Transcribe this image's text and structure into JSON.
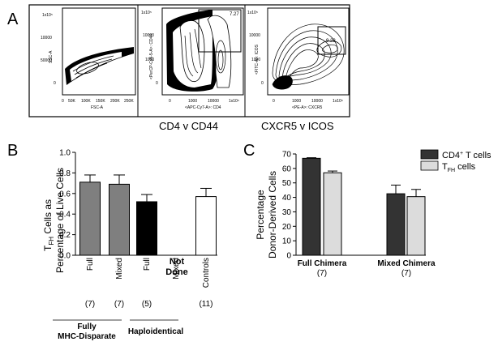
{
  "panel_labels": {
    "a": "A",
    "b": "B",
    "c": "C"
  },
  "flow": {
    "plots": [
      {
        "ylabel": "SSC-A",
        "xlabel": "FSC-A",
        "y_ticks": [
          "1x10⁵",
          "10000",
          "50000",
          "0"
        ],
        "x_ticks": [
          "0",
          "50K",
          "100K",
          "150K",
          "200K",
          "250K"
        ],
        "gate_value": ""
      },
      {
        "ylabel": "<PerCP-Cy5-5-A>: CD44",
        "xlabel": "<APC-Cy7-A>: CD4",
        "y_ticks": [
          "1x10⁵",
          "10000",
          "1000",
          "0"
        ],
        "x_ticks": [
          "0",
          "1000",
          "10000",
          "1x10⁵"
        ],
        "gate_value": "7.27"
      },
      {
        "ylabel": "<FITC-A>: ICOS",
        "xlabel": "<PE-A>: CXCR5",
        "y_ticks": [
          "1x10⁵",
          "10000",
          "1000",
          "0"
        ],
        "x_ticks": [
          "0",
          "1000",
          "10000",
          "1x10⁵"
        ],
        "gate_value": "9.28"
      }
    ],
    "captions": [
      "CD4 v CD44",
      "CXCR5 v ICOS"
    ]
  },
  "chart_data": [
    {
      "type": "bar",
      "ylabel_parts": [
        "T",
        "FH",
        " Cells as"
      ],
      "ylabel_line2": "Percentage of Live Cells",
      "ylim": [
        0,
        1.0
      ],
      "y_ticks": [
        "0.0",
        "0.2",
        "0.4",
        "0.6",
        "0.8",
        "1.0"
      ],
      "categories": [
        "Full",
        "Mixed",
        "Full",
        "Mixed",
        "Controls"
      ],
      "counts": [
        "(7)",
        "(7)",
        "(5)",
        "",
        "(11)"
      ],
      "values": [
        0.71,
        0.69,
        0.52,
        null,
        0.57
      ],
      "errors": [
        0.07,
        0.09,
        0.07,
        null,
        0.08
      ],
      "colors": [
        "#7f7f7f",
        "#7f7f7f",
        "#000000",
        "#ffffff",
        "#ffffff"
      ],
      "annotation": [
        "Not",
        "Done"
      ],
      "groups": [
        {
          "label_lines": [
            "Fully",
            "MHC-Disparate"
          ]
        },
        {
          "label_lines": [
            "Haploidentical"
          ]
        }
      ]
    },
    {
      "type": "bar",
      "ylabel_line1": "Percentage",
      "ylabel_line2": "Donor-Derived  Cells",
      "ylim": [
        0,
        70
      ],
      "y_ticks": [
        "0",
        "10",
        "20",
        "30",
        "40",
        "50",
        "60",
        "70"
      ],
      "categories": [
        "Full Chimera",
        "Mixed Chimera"
      ],
      "counts": [
        "(7)",
        "(7)"
      ],
      "series": [
        {
          "name_parts": [
            "CD4",
            "+",
            " T cells"
          ],
          "color": "#333333",
          "values": [
            67,
            42.5
          ],
          "errors": [
            0.4,
            6
          ]
        },
        {
          "name_parts": [
            "T",
            "FH",
            " cells"
          ],
          "color": "#dcdcdc",
          "values": [
            57,
            40.5
          ],
          "errors": [
            1.2,
            5
          ]
        }
      ]
    }
  ]
}
